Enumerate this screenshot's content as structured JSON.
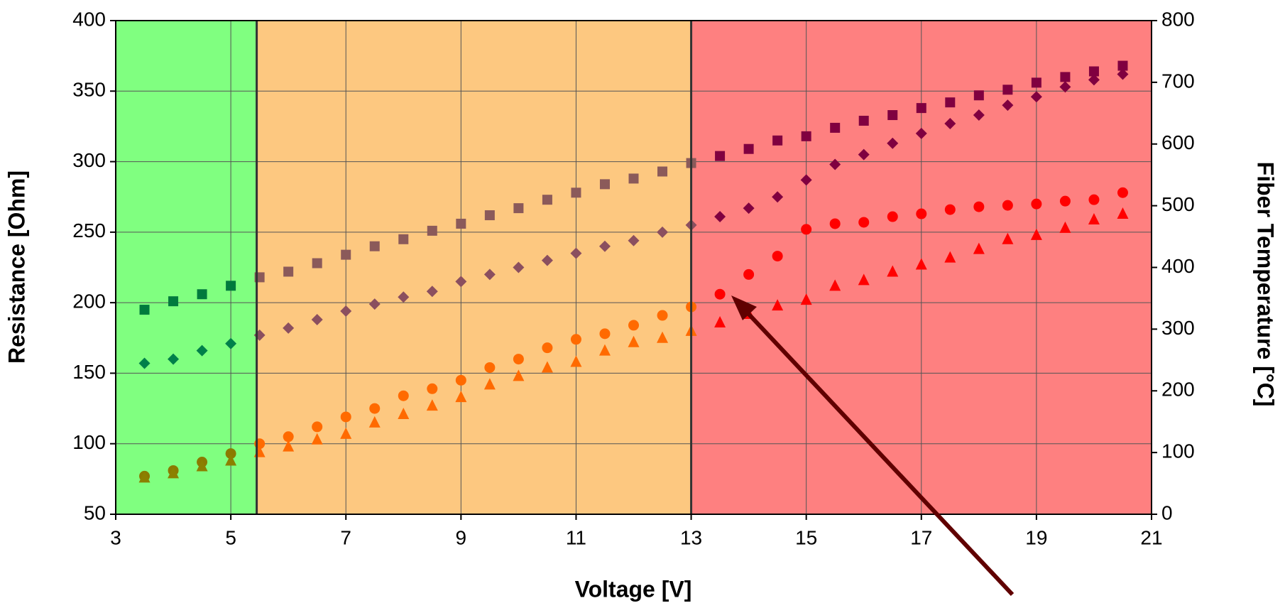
{
  "chart_data": {
    "type": "scatter",
    "x_label": "Voltage [V]",
    "y_label": "Resistance [Ohm]",
    "y2_label": "Fiber Temperature [°C]",
    "xlim": [
      3,
      21
    ],
    "xticks": [
      3,
      5,
      7,
      9,
      11,
      13,
      15,
      17,
      19,
      21
    ],
    "ylim": [
      50,
      400
    ],
    "yticks": [
      50,
      100,
      150,
      200,
      250,
      300,
      350,
      400
    ],
    "y2lim": [
      0,
      800
    ],
    "y2ticks": [
      0,
      100,
      200,
      300,
      400,
      500,
      600,
      700,
      800
    ],
    "grid": true,
    "regions": [
      {
        "from": 3,
        "to": 5.45,
        "color": "#80ff80"
      },
      {
        "from": 5.45,
        "to": 13,
        "color": "#fdc880"
      },
      {
        "from": 13,
        "to": 21,
        "color": "#fe8080"
      }
    ],
    "x": [
      3.5,
      4,
      4.5,
      5,
      5.5,
      6,
      6.5,
      7,
      7.5,
      8,
      8.5,
      9,
      9.5,
      10,
      10.5,
      11,
      11.5,
      12,
      12.5,
      13,
      13.5,
      14,
      14.5,
      15,
      15.5,
      16,
      16.5,
      17,
      17.5,
      18,
      18.5,
      19,
      19.5,
      20,
      20.5
    ],
    "series": [
      {
        "marker": "square",
        "color": "#800040",
        "colors": [
          "#007a3d",
          "#007a3d",
          "#007a3d",
          "#007a3d",
          "#8b5a5a",
          "#8b5a5a",
          "#8b5a5a",
          "#8b5a5a",
          "#8b5a5a",
          "#8b5a5a",
          "#8b5a5a",
          "#8b5a5a",
          "#8b5a5a",
          "#8b5a5a",
          "#8b5a5a",
          "#8b5a5a",
          "#8b5a5a",
          "#8b5a5a",
          "#8b5a5a",
          "#8b5a5a",
          "#800040",
          "#800040",
          "#800040",
          "#800040",
          "#800040",
          "#800040",
          "#800040",
          "#800040",
          "#800040",
          "#800040",
          "#800040",
          "#800040",
          "#800040",
          "#800040",
          "#800040"
        ],
        "values": [
          195,
          201,
          206,
          212,
          218,
          222,
          228,
          234,
          240,
          245,
          251,
          256,
          262,
          267,
          273,
          278,
          284,
          288,
          293,
          299,
          304,
          309,
          315,
          318,
          324,
          329,
          333,
          338,
          342,
          347,
          351,
          356,
          360,
          364,
          368
        ]
      },
      {
        "marker": "diamond",
        "color": "#800040",
        "colors": [
          "#00804a",
          "#00804a",
          "#00804a",
          "#00804a",
          "#8b4f5f",
          "#8b4f5f",
          "#8b4f5f",
          "#8b4f5f",
          "#8b4f5f",
          "#8b4f5f",
          "#8b4f5f",
          "#8b4f5f",
          "#8b4f5f",
          "#8b4f5f",
          "#8b4f5f",
          "#8b4f5f",
          "#8b4f5f",
          "#8b4f5f",
          "#8b4f5f",
          "#8b4f5f",
          "#800040",
          "#800040",
          "#800040",
          "#800040",
          "#800040",
          "#800040",
          "#800040",
          "#800040",
          "#800040",
          "#800040",
          "#800040",
          "#800040",
          "#800040",
          "#800040",
          "#800040"
        ],
        "values": [
          157,
          160,
          166,
          171,
          177,
          182,
          188,
          194,
          199,
          204,
          208,
          215,
          220,
          225,
          230,
          235,
          240,
          244,
          250,
          255,
          261,
          267,
          275,
          287,
          298,
          305,
          313,
          320,
          327,
          333,
          340,
          346,
          353,
          358,
          362
        ]
      },
      {
        "marker": "circle",
        "color": "#ff0000",
        "colors": [
          "#8b7a00",
          "#8b7a00",
          "#8b7a00",
          "#8b7a00",
          "#ff6a00",
          "#ff6a00",
          "#ff6a00",
          "#ff6a00",
          "#ff6a00",
          "#ff6a00",
          "#ff6a00",
          "#ff6a00",
          "#ff6a00",
          "#ff6a00",
          "#ff6a00",
          "#ff6a00",
          "#ff6a00",
          "#ff6a00",
          "#ff6a00",
          "#ff6a00",
          "#ff0000",
          "#ff0000",
          "#ff0000",
          "#ff0000",
          "#ff0000",
          "#ff0000",
          "#ff0000",
          "#ff0000",
          "#ff0000",
          "#ff0000",
          "#ff0000",
          "#ff0000",
          "#ff0000",
          "#ff0000",
          "#ff0000"
        ],
        "values": [
          77,
          81,
          87,
          93,
          100,
          105,
          112,
          119,
          125,
          134,
          139,
          145,
          154,
          160,
          168,
          174,
          178,
          184,
          191,
          197,
          206,
          220,
          233,
          252,
          256,
          257,
          261,
          263,
          266,
          268,
          269,
          270,
          272,
          273,
          278
        ]
      },
      {
        "marker": "triangle",
        "color": "#ff0000",
        "colors": [
          "#8b8000",
          "#8b8000",
          "#8b8000",
          "#8b8000",
          "#ff6a00",
          "#ff6a00",
          "#ff6a00",
          "#ff6a00",
          "#ff6a00",
          "#ff6a00",
          "#ff6a00",
          "#ff6a00",
          "#ff6a00",
          "#ff6a00",
          "#ff6a00",
          "#ff6a00",
          "#ff6a00",
          "#ff6a00",
          "#ff6a00",
          "#ff6a00",
          "#ff0000",
          "#ff0000",
          "#ff0000",
          "#ff0000",
          "#ff0000",
          "#ff0000",
          "#ff0000",
          "#ff0000",
          "#ff0000",
          "#ff0000",
          "#ff0000",
          "#ff0000",
          "#ff0000",
          "#ff0000",
          "#ff0000"
        ],
        "values": [
          76,
          79,
          84,
          88,
          94,
          98,
          103,
          107,
          115,
          121,
          127,
          133,
          142,
          148,
          154,
          158,
          166,
          172,
          175,
          180,
          186,
          192,
          198,
          202,
          212,
          216,
          222,
          227,
          232,
          238,
          245,
          248,
          253,
          259,
          263
        ]
      }
    ]
  }
}
